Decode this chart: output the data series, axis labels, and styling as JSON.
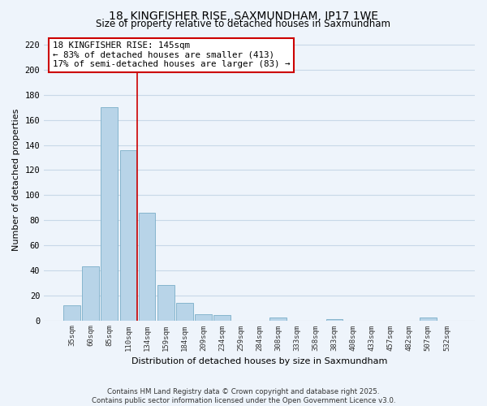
{
  "title": "18, KINGFISHER RISE, SAXMUNDHAM, IP17 1WE",
  "subtitle": "Size of property relative to detached houses in Saxmundham",
  "xlabel": "Distribution of detached houses by size in Saxmundham",
  "ylabel": "Number of detached properties",
  "categories": [
    "35sqm",
    "60sqm",
    "85sqm",
    "110sqm",
    "134sqm",
    "159sqm",
    "184sqm",
    "209sqm",
    "234sqm",
    "259sqm",
    "284sqm",
    "308sqm",
    "333sqm",
    "358sqm",
    "383sqm",
    "408sqm",
    "433sqm",
    "457sqm",
    "482sqm",
    "507sqm",
    "532sqm"
  ],
  "values": [
    12,
    43,
    170,
    136,
    86,
    28,
    14,
    5,
    4,
    0,
    0,
    2,
    0,
    0,
    1,
    0,
    0,
    0,
    0,
    2,
    0
  ],
  "bar_color": "#b8d4e8",
  "bar_edgecolor": "#7aaec8",
  "vline_x": 3.5,
  "vline_color": "#cc0000",
  "annotation_title": "18 KINGFISHER RISE: 145sqm",
  "annotation_line1": "← 83% of detached houses are smaller (413)",
  "annotation_line2": "17% of semi-detached houses are larger (83) →",
  "footer1": "Contains HM Land Registry data © Crown copyright and database right 2025.",
  "footer2": "Contains public sector information licensed under the Open Government Licence v3.0.",
  "ylim": [
    0,
    225
  ],
  "yticks": [
    0,
    20,
    40,
    60,
    80,
    100,
    120,
    140,
    160,
    180,
    200,
    220
  ],
  "background_color": "#eef4fb",
  "grid_color": "#c8d8e8"
}
